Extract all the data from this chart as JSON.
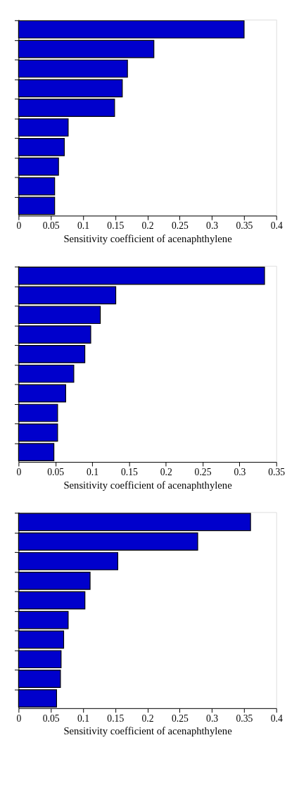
{
  "chart_data": [
    {
      "type": "bar",
      "orientation": "horizontal",
      "categories": [
        null,
        null,
        null,
        null,
        null,
        null,
        null,
        null,
        null,
        null
      ],
      "xlabel": "Sensitivity coefficient of acenaphthylene",
      "color": "#0000cc",
      "values": [
        0.35,
        0.21,
        0.169,
        0.161,
        0.149,
        0.077,
        0.071,
        0.062,
        0.056,
        0.056
      ],
      "xlim": [
        0,
        0.4
      ],
      "xticks": [
        0,
        0.05,
        0.1,
        0.15,
        0.2,
        0.25,
        0.3,
        0.35,
        0.4
      ],
      "tick_labels": "x",
      "grid": false
    },
    {
      "type": "bar",
      "orientation": "horizontal",
      "categories": [
        null,
        null,
        null,
        null,
        null,
        null,
        null,
        null,
        null,
        null
      ],
      "xlabel": "Sensitivity coefficient of acenaphthylene",
      "color": "#0000cc",
      "values": [
        0.334,
        0.132,
        0.111,
        0.098,
        0.09,
        0.075,
        0.064,
        0.053,
        0.053,
        0.048
      ],
      "xlim": [
        0,
        0.35
      ],
      "xticks": [
        0,
        0.05,
        0.1,
        0.15,
        0.2,
        0.25,
        0.3,
        0.35
      ],
      "tick_labels": "x",
      "grid": false
    },
    {
      "type": "bar",
      "orientation": "horizontal",
      "categories": [
        null,
        null,
        null,
        null,
        null,
        null,
        null,
        null,
        null,
        null
      ],
      "xlabel": "Sensitivity coefficient of acenaphthylene",
      "color": "#0000cc",
      "values": [
        0.36,
        0.278,
        0.154,
        0.111,
        0.103,
        0.077,
        0.07,
        0.066,
        0.065,
        0.059
      ],
      "xlim": [
        0,
        0.4
      ],
      "xticks": [
        0,
        0.05,
        0.1,
        0.15,
        0.2,
        0.25,
        0.3,
        0.35,
        0.4
      ],
      "tick_labels": "x",
      "grid": false
    }
  ]
}
